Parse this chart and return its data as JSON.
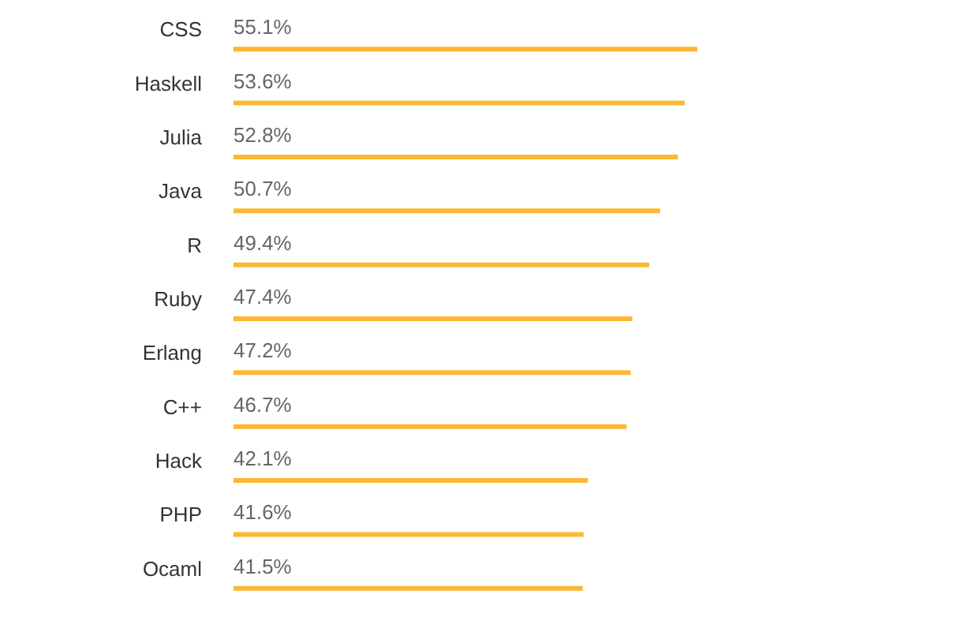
{
  "chart_data": {
    "type": "bar",
    "orientation": "horizontal",
    "categories": [
      "CSS",
      "Haskell",
      "Julia",
      "Java",
      "R",
      "Ruby",
      "Erlang",
      "C++",
      "Hack",
      "PHP",
      "Ocaml"
    ],
    "values": [
      55.1,
      53.6,
      52.8,
      50.7,
      49.4,
      47.4,
      47.2,
      46.7,
      42.1,
      41.6,
      41.5
    ],
    "value_labels": [
      "55.1%",
      "53.6%",
      "52.8%",
      "50.7%",
      "49.4%",
      "47.4%",
      "47.2%",
      "46.7%",
      "42.1%",
      "41.6%",
      "41.5%"
    ],
    "color": "#fbb735"
  }
}
